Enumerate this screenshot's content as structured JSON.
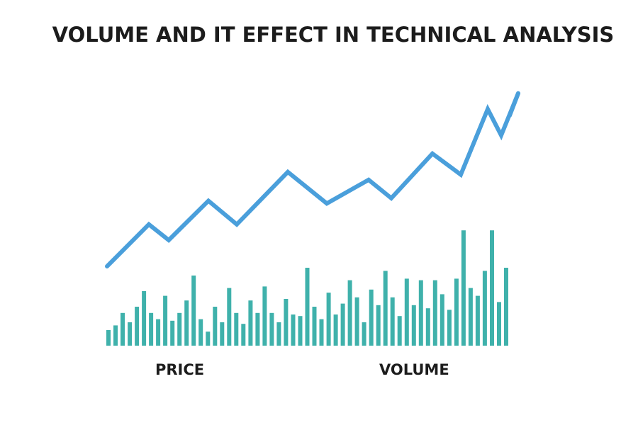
{
  "title": "VOLUME AND IT EFFECT IN TECHNICAL ANALYSIS",
  "labels": {
    "price": "PRICE",
    "volume": "VOLUME"
  },
  "colors": {
    "price_line": "#4a9fdb",
    "volume_bars": "#3fb1ab",
    "text": "#1c1c1c"
  },
  "chart_data": {
    "type": "line",
    "title": "VOLUME AND IT EFFECT IN TECHNICAL ANALYSIS",
    "xlabel": "",
    "ylabel": "",
    "grid": false,
    "price": {
      "name": "PRICE",
      "values": [
        20,
        36,
        30,
        45,
        36,
        56,
        44,
        53,
        46,
        63,
        55,
        80,
        70,
        86,
        89
      ]
    },
    "volume": {
      "name": "VOLUME",
      "values": [
        20,
        26,
        42,
        30,
        50,
        70,
        42,
        34,
        64,
        32,
        42,
        58,
        90,
        34,
        18,
        50,
        30,
        74,
        42,
        28,
        58,
        42,
        76,
        42,
        30,
        60,
        40,
        38,
        100,
        50,
        34,
        68,
        40,
        54,
        84,
        62,
        30,
        72,
        52,
        96,
        62,
        38,
        86,
        52,
        84,
        48,
        84,
        66,
        46,
        86,
        148,
        74,
        64,
        96,
        148,
        56,
        100
      ]
    }
  }
}
